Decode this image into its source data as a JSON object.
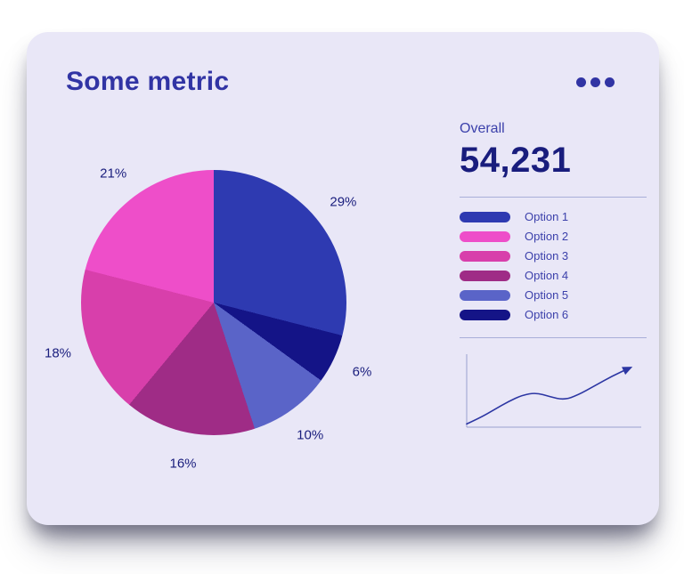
{
  "theme": {
    "page_bg": "#ffffff",
    "card_bg": "#e9e7f7",
    "heading": "#3134a4",
    "label_indigo": "#3c41ab",
    "value_navy": "#191d7d",
    "divider": "#a9aed9",
    "axis": "#99a1cf",
    "line": "#2c36a3"
  },
  "card": {
    "title": "Some metric",
    "menu_icon": "ellipsis-icon"
  },
  "overall": {
    "label": "Overall",
    "value": "54,231"
  },
  "chart_data": [
    {
      "type": "pie",
      "title": "Some metric",
      "unit": "%",
      "series": [
        {
          "label": "Option 1",
          "value": 29,
          "color": "#2e3ab1"
        },
        {
          "label": "Option 2",
          "value": 21,
          "color": "#ee4ec9"
        },
        {
          "label": "Option 3",
          "value": 18,
          "color": "#d83fab"
        },
        {
          "label": "Option 4",
          "value": 16,
          "color": "#9f2c86"
        },
        {
          "label": "Option 5",
          "value": 10,
          "color": "#5a64c8"
        },
        {
          "label": "Option 6",
          "value": 6,
          "color": "#141487"
        }
      ],
      "clockwise_order_from_top": [
        0,
        5,
        4,
        3,
        2,
        1
      ],
      "slice_label_format": "{value}%",
      "legend_position": "right"
    },
    {
      "type": "line",
      "title": "",
      "x": [
        0,
        8,
        16,
        24,
        32,
        40,
        48,
        56,
        64,
        74,
        84,
        94
      ],
      "y": [
        4,
        12,
        22,
        32,
        40,
        43,
        38,
        34,
        40,
        52,
        64,
        74
      ],
      "xlim": [
        0,
        100
      ],
      "ylim": [
        0,
        100
      ],
      "grid": false,
      "arrow_end": true,
      "arrow_icon": "arrow-up-right-icon"
    }
  ]
}
